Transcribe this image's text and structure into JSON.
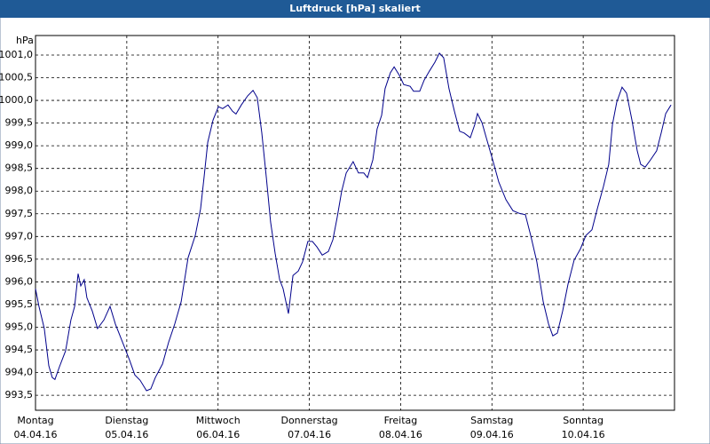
{
  "chart_data": {
    "type": "line",
    "title": "Luftdruck [hPa] skaliert",
    "y_unit": "hPa",
    "xlim": [
      0,
      168
    ],
    "ylim": [
      993.17,
      1001.43
    ],
    "xticks": [
      {
        "value": 0,
        "label": "Montag"
      },
      {
        "value": 24,
        "label": "Dienstag"
      },
      {
        "value": 48,
        "label": "Mittwoch"
      },
      {
        "value": 72,
        "label": "Donnerstag"
      },
      {
        "value": 96,
        "label": "Freitag"
      },
      {
        "value": 120,
        "label": "Samstag"
      },
      {
        "value": 144,
        "label": "Sonntag"
      }
    ],
    "xtick_dates": [
      "04.04.16",
      "05.04.16",
      "06.04.16",
      "07.04.16",
      "08.04.16",
      "09.04.16",
      "10.04.16"
    ],
    "yticks": [
      {
        "value": 993.5,
        "label": "993,5"
      },
      {
        "value": 994.0,
        "label": "994,0"
      },
      {
        "value": 994.5,
        "label": "994,5"
      },
      {
        "value": 995.0,
        "label": "995,0"
      },
      {
        "value": 995.5,
        "label": "995,5"
      },
      {
        "value": 996.0,
        "label": "996,0"
      },
      {
        "value": 996.5,
        "label": "996,5"
      },
      {
        "value": 997.0,
        "label": "997,0"
      },
      {
        "value": 997.5,
        "label": "997,5"
      },
      {
        "value": 998.0,
        "label": "998,0"
      },
      {
        "value": 998.5,
        "label": "998,5"
      },
      {
        "value": 999.0,
        "label": "999,0"
      },
      {
        "value": 999.5,
        "label": "999,5"
      },
      {
        "value": 1000.0,
        "label": "1000,0"
      },
      {
        "value": 1000.5,
        "label": "1000,5"
      },
      {
        "value": 1001.0,
        "label": "1001,0"
      }
    ],
    "grid": true,
    "color": "#00008b",
    "x": [
      0,
      0.9,
      2.3,
      3.5,
      4.4,
      5.1,
      6.3,
      7.9,
      9.3,
      10.3,
      11.2,
      11.9,
      12.8,
      13.5,
      14.9,
      16.3,
      18.0,
      19.6,
      21.0,
      22.9,
      24.7,
      26.1,
      27.5,
      29.2,
      30.3,
      31.5,
      33.4,
      35.0,
      36.6,
      38.3,
      40.1,
      42.0,
      43.4,
      44.3,
      45.3,
      46.7,
      48.1,
      49.2,
      50.6,
      51.8,
      52.7,
      54.1,
      55.8,
      57.2,
      58.3,
      59.5,
      60.7,
      61.8,
      63.0,
      64.2,
      65.1,
      66.5,
      67.7,
      69.1,
      70.2,
      71.6,
      72.8,
      74.0,
      75.4,
      77.0,
      78.2,
      79.3,
      80.5,
      81.7,
      83.5,
      84.9,
      86.3,
      87.3,
      88.7,
      89.8,
      91.0,
      91.9,
      93.3,
      94.3,
      95.7,
      96.8,
      98.5,
      99.4,
      101.0,
      102.2,
      103.6,
      105.0,
      106.2,
      107.3,
      108.7,
      110.1,
      111.5,
      112.7,
      114.3,
      115.5,
      116.2,
      117.4,
      118.5,
      120.2,
      121.8,
      123.7,
      125.5,
      127.2,
      128.8,
      130.2,
      131.8,
      133.5,
      134.9,
      136.0,
      137.2,
      138.6,
      140.0,
      141.6,
      143.3,
      144.7,
      146.3,
      147.7,
      149.3,
      150.7,
      151.7,
      152.8,
      154.2,
      155.4,
      156.8,
      158.2,
      159.1,
      160.3,
      161.7,
      163.3,
      164.5,
      165.7,
      167.1
    ],
    "values": [
      995.85,
      995.46,
      994.97,
      994.15,
      993.89,
      993.85,
      994.13,
      994.48,
      995.16,
      995.46,
      996.18,
      995.91,
      996.05,
      995.65,
      995.36,
      994.97,
      995.16,
      995.46,
      995.07,
      994.67,
      994.28,
      993.95,
      993.83,
      993.6,
      993.64,
      993.89,
      994.19,
      994.67,
      995.07,
      995.56,
      996.53,
      997.02,
      997.61,
      998.3,
      999.08,
      999.57,
      999.86,
      999.82,
      999.9,
      999.76,
      999.7,
      999.9,
      1000.1,
      1000.22,
      1000.06,
      999.28,
      998.3,
      997.32,
      996.63,
      996.05,
      995.85,
      995.3,
      996.14,
      996.24,
      996.44,
      996.89,
      996.89,
      996.77,
      996.59,
      996.67,
      996.93,
      997.42,
      998.0,
      998.4,
      998.65,
      998.4,
      998.4,
      998.3,
      998.69,
      999.37,
      999.67,
      1000.26,
      1000.61,
      1000.74,
      1000.55,
      1000.35,
      1000.31,
      1000.2,
      1000.2,
      1000.45,
      1000.65,
      1000.84,
      1001.04,
      1000.94,
      1000.26,
      999.77,
      999.32,
      999.28,
      999.18,
      999.47,
      999.71,
      999.51,
      999.18,
      998.69,
      998.2,
      997.81,
      997.57,
      997.51,
      997.48,
      997.02,
      996.44,
      995.56,
      995.07,
      994.81,
      994.87,
      995.36,
      995.95,
      996.48,
      996.73,
      997.02,
      997.15,
      997.61,
      998.1,
      998.59,
      999.47,
      999.96,
      1000.29,
      1000.16,
      999.57,
      998.89,
      998.59,
      998.53,
      998.69,
      998.89,
      999.28,
      999.71,
      999.9
    ]
  }
}
